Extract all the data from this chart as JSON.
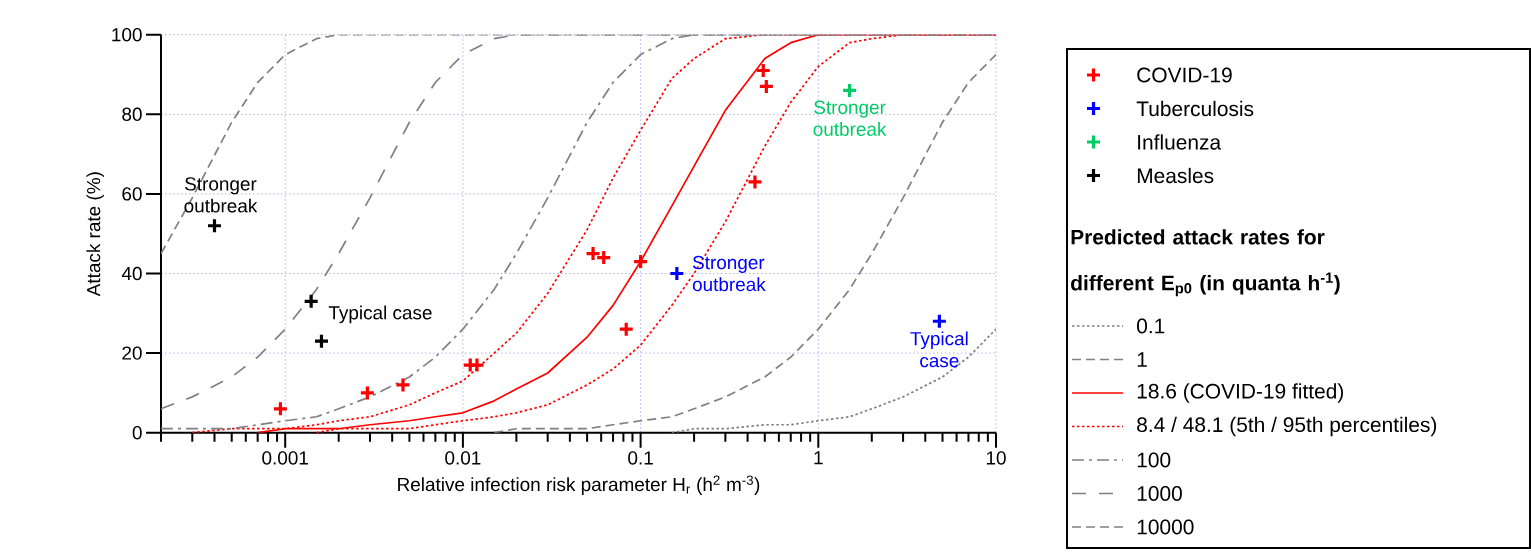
{
  "chart_data": {
    "type": "line",
    "xlabel": "Relative infection risk parameter H$_{r}$ (h$^{2}$ m$^{-3}$)",
    "ylabel": "Attack rate (%)",
    "legend_title": "Predicted attack rates for different E$_{p0}$ (in quanta h$^{-1}$)",
    "log": "x",
    "xlim": [
      0.0002,
      10
    ],
    "ylim": [
      0,
      100
    ],
    "xticks": [
      0.001,
      0.01,
      0.1,
      1,
      10
    ],
    "yticks": [
      0,
      20,
      40,
      60,
      80,
      100
    ],
    "grid": true,
    "legend": "right",
    "x": [
      0.0002,
      0.0003,
      0.0005,
      0.0007,
      0.001,
      0.0015,
      0.002,
      0.003,
      0.005,
      0.007,
      0.01,
      0.015,
      0.02,
      0.03,
      0.05,
      0.07,
      0.1,
      0.15,
      0.2,
      0.3,
      0.5,
      0.7,
      1,
      1.5,
      2,
      3,
      5,
      7,
      10
    ],
    "series": [
      {
        "name": "COVID-19",
        "type": "scatter",
        "marker": "cross",
        "color": "#ff0000",
        "x": [
          0.00094,
          0.0029,
          0.0046,
          0.011,
          0.012,
          0.054,
          0.062,
          0.083,
          0.1,
          0.44,
          0.49,
          0.51
        ],
        "values": [
          6,
          10,
          12,
          17,
          17,
          45,
          44,
          26,
          43,
          63,
          91,
          87
        ]
      },
      {
        "name": "Tuberculosis",
        "type": "scatter",
        "marker": "cross",
        "color": "#0000ff",
        "x": [
          0.16,
          4.8
        ],
        "values": [
          40,
          28
        ]
      },
      {
        "name": "Influenza",
        "type": "scatter",
        "marker": "cross",
        "color": "#00cc66",
        "x": [
          1.5
        ],
        "values": [
          86
        ]
      },
      {
        "name": "Measles",
        "type": "scatter",
        "marker": "cross",
        "color": "#000000",
        "x": [
          0.0004,
          0.0014,
          0.0016
        ],
        "values": [
          52,
          33,
          23
        ]
      },
      {
        "name": "0.1",
        "marker": "none",
        "line_style": "dotted",
        "color": "#808080",
        "values": [
          null,
          null,
          null,
          null,
          null,
          null,
          null,
          null,
          null,
          null,
          null,
          null,
          null,
          null,
          null,
          null,
          null,
          0,
          1,
          1,
          2,
          2,
          3,
          4,
          6,
          9,
          14,
          19,
          26
        ]
      },
      {
        "name": "1",
        "marker": "none",
        "line_style": "dashed",
        "color": "#808080",
        "values": [
          null,
          null,
          null,
          null,
          null,
          null,
          null,
          null,
          null,
          null,
          null,
          0,
          1,
          1,
          1,
          2,
          3,
          4,
          6,
          9,
          14,
          19,
          26,
          36,
          45,
          59,
          78,
          88,
          95
        ]
      },
      {
        "name": "18.6 (COVID-19 fitted)",
        "marker": "none",
        "line_style": "solid",
        "color": "#ff0000",
        "values": [
          null,
          null,
          null,
          0,
          1,
          1,
          1,
          2,
          3,
          4,
          5,
          8,
          11,
          15,
          24,
          32,
          43,
          57,
          67,
          81,
          94,
          98,
          100,
          100,
          100,
          100,
          100,
          100,
          100
        ]
      },
      {
        "name": "8.4 / 48.1 (5th / 95th percentiles)",
        "marker": "none",
        "line_style": "dotted",
        "color": "#ff0000",
        "values": [
          null,
          null,
          null,
          null,
          null,
          0,
          1,
          1,
          1,
          2,
          3,
          4,
          5,
          7,
          12,
          16,
          22,
          32,
          40,
          53,
          72,
          83,
          92,
          98,
          99,
          100,
          100,
          100,
          100
        ]
      },
      {
        "marker": "none",
        "line_style": "dotted",
        "color": "#ff0000",
        "values": [
          null,
          0,
          1,
          1,
          1,
          2,
          3,
          4,
          7,
          10,
          13,
          20,
          25,
          35,
          51,
          64,
          76,
          89,
          94,
          99,
          100,
          100,
          100,
          100,
          100,
          100,
          100,
          100,
          100
        ]
      },
      {
        "name": "100",
        "marker": "none",
        "line_style": "dashdot",
        "color": "#808080",
        "values": [
          1,
          1,
          1,
          2,
          3,
          4,
          6,
          9,
          14,
          19,
          26,
          36,
          45,
          59,
          78,
          88,
          95,
          99,
          100,
          100,
          100,
          100,
          100,
          100,
          100,
          100,
          100,
          100,
          100
        ]
      },
      {
        "name": "1000",
        "marker": "none",
        "line_style": "loosely dashed",
        "color": "#808080",
        "values": [
          6,
          9,
          14,
          19,
          26,
          36,
          45,
          59,
          78,
          88,
          95,
          99,
          100,
          100,
          100,
          100,
          100,
          100,
          100,
          100,
          100,
          100,
          100,
          100,
          100,
          100,
          100,
          100,
          100
        ]
      },
      {
        "name": "10000",
        "marker": "none",
        "line_style": "dashed",
        "color": "#808080",
        "values": [
          45,
          59,
          78,
          88,
          95,
          99,
          100,
          100,
          100,
          100,
          100,
          100,
          100,
          100,
          100,
          100,
          100,
          100,
          100,
          100,
          100,
          100,
          100,
          100,
          100,
          100,
          100,
          100,
          100
        ]
      }
    ],
    "annotations": [
      {
        "text": "Stronger outbreak",
        "x": 0.0004,
        "y": 52
      },
      {
        "text": "Typical case",
        "x": 0.0014,
        "y": 33
      },
      {
        "text": "Stronger outbreak",
        "x": 0.16,
        "y": 40
      },
      {
        "text": "Typical case",
        "x": 4.8,
        "y": 28
      },
      {
        "text": "Stronger outbreak",
        "x": 1.5,
        "y": 86
      }
    ]
  }
}
